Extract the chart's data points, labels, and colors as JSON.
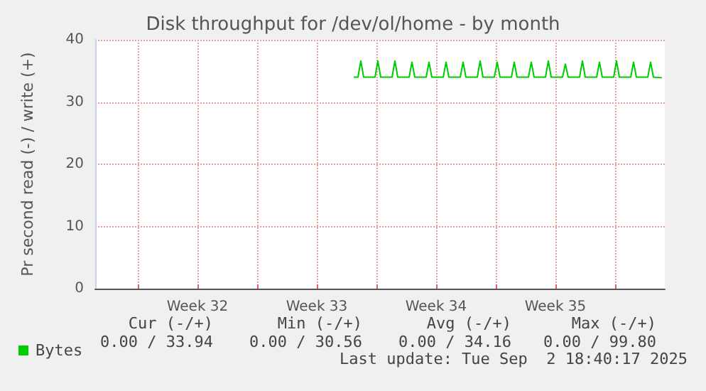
{
  "chart_data": {
    "type": "line",
    "title": "Disk throughput for /dev/ol/home - by month",
    "ylabel": "Pr second read (-) / write (+)",
    "xlim": [
      "2025-07-31T12:00",
      "2025-09-02T22:00"
    ],
    "xticks": [
      {
        "value": "2025-08-03T00:00",
        "label": null
      },
      {
        "value": "2025-08-06T12:00",
        "label": "Week 32"
      },
      {
        "value": "2025-08-10T00:00",
        "label": null
      },
      {
        "value": "2025-08-13T12:00",
        "label": "Week 33"
      },
      {
        "value": "2025-08-17T00:00",
        "label": null
      },
      {
        "value": "2025-08-20T12:00",
        "label": "Week 34"
      },
      {
        "value": "2025-08-24T00:00",
        "label": null
      },
      {
        "value": "2025-08-27T12:00",
        "label": "Week 35"
      },
      {
        "value": "2025-08-31T00:00",
        "label": null
      }
    ],
    "ylim": [
      0,
      40
    ],
    "yticks": [
      0,
      10,
      20,
      30,
      40
    ],
    "grid": true,
    "legend": "bottom left",
    "marker": "none",
    "line_style": "solid",
    "series": [
      {
        "name": "Bytes",
        "color": "#00cc00",
        "x": [
          "2025-08-15T16:00",
          "2025-08-15T22:00",
          "2025-08-16T02:00",
          "2025-08-16T06:00",
          "2025-08-16T22:00",
          "2025-08-17T02:00",
          "2025-08-17T06:00",
          "2025-08-17T22:00",
          "2025-08-18T02:00",
          "2025-08-18T06:00",
          "2025-08-18T22:00",
          "2025-08-19T02:00",
          "2025-08-19T06:00",
          "2025-08-19T22:00",
          "2025-08-20T02:00",
          "2025-08-20T06:00",
          "2025-08-20T22:00",
          "2025-08-21T02:00",
          "2025-08-21T06:00",
          "2025-08-21T22:00",
          "2025-08-22T02:00",
          "2025-08-22T06:00",
          "2025-08-22T22:00",
          "2025-08-23T02:00",
          "2025-08-23T06:00",
          "2025-08-23T22:00",
          "2025-08-24T02:00",
          "2025-08-24T06:00",
          "2025-08-24T22:00",
          "2025-08-25T02:00",
          "2025-08-25T06:00",
          "2025-08-25T22:00",
          "2025-08-26T02:00",
          "2025-08-26T06:00",
          "2025-08-26T22:00",
          "2025-08-27T02:00",
          "2025-08-27T06:00",
          "2025-08-27T22:00",
          "2025-08-28T02:00",
          "2025-08-28T06:00",
          "2025-08-28T22:00",
          "2025-08-29T02:00",
          "2025-08-29T06:00",
          "2025-08-29T22:00",
          "2025-08-30T02:00",
          "2025-08-30T06:00",
          "2025-08-30T22:00",
          "2025-08-31T02:00",
          "2025-08-31T06:00",
          "2025-08-31T22:00",
          "2025-09-01T02:00",
          "2025-09-01T06:00",
          "2025-09-01T22:00",
          "2025-09-02T02:00",
          "2025-09-02T06:00",
          "2025-09-02T18:00"
        ],
        "values": [
          34.0,
          34.0,
          36.6,
          34.0,
          34.0,
          36.6,
          34.0,
          34.0,
          36.6,
          34.0,
          34.0,
          36.4,
          34.0,
          34.0,
          36.4,
          34.0,
          34.0,
          36.4,
          34.0,
          34.0,
          36.4,
          34.0,
          34.0,
          36.6,
          34.0,
          34.0,
          36.4,
          34.0,
          34.0,
          36.4,
          34.0,
          34.0,
          36.4,
          34.0,
          34.0,
          36.6,
          34.0,
          34.0,
          36.1,
          34.0,
          34.0,
          36.6,
          34.0,
          34.0,
          36.4,
          34.0,
          34.0,
          36.6,
          34.0,
          34.0,
          36.4,
          34.0,
          34.0,
          36.4,
          34.0,
          33.9
        ]
      }
    ],
    "annotations": [
      "Cur (-/+)",
      "Min (-/+)",
      "Avg (-/+)",
      "Max (-/+)",
      "0.00 / 33.94",
      "0.00 / 30.56",
      "0.00 / 34.16",
      "0.00 / 99.80",
      "Last update: Tue Sep  2 18:40:17 2025"
    ]
  }
}
